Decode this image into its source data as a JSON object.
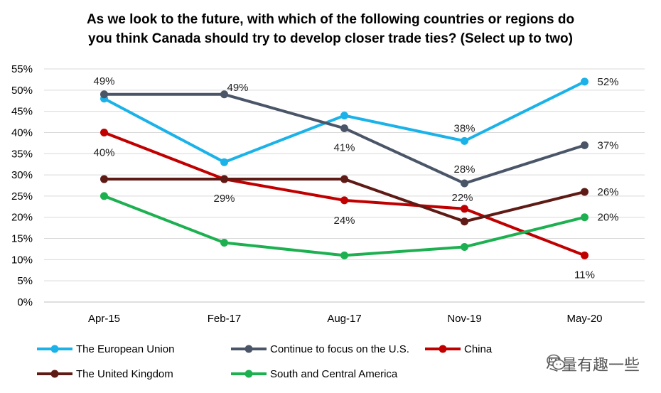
{
  "watermark": {
    "text": "尽量有趣一些",
    "icon": "wechat-icon"
  },
  "chart_data": {
    "type": "line",
    "title_lines": [
      "As we look to the future, with which of the following countries or regions do",
      "you think Canada should try to develop closer trade ties? (Select up to two)"
    ],
    "categories": [
      "Apr-15",
      "Feb-17",
      "Aug-17",
      "Nov-19",
      "May-20"
    ],
    "ylim": [
      0,
      55
    ],
    "yticks": [
      "0%",
      "5%",
      "10%",
      "15%",
      "20%",
      "25%",
      "30%",
      "35%",
      "40%",
      "45%",
      "50%",
      "55%"
    ],
    "grid": true,
    "legend_position": "bottom",
    "series": [
      {
        "name": "The European Union",
        "color": "#1AB2E8",
        "values": [
          48,
          33,
          44,
          38,
          52
        ],
        "labels": [
          "",
          "",
          "",
          "38%",
          "52%"
        ]
      },
      {
        "name": "Continue to focus on the U.S.",
        "color": "#4A5668",
        "values": [
          49,
          49,
          41,
          28,
          37
        ],
        "labels": [
          "49%",
          "49%",
          "41%",
          "28%",
          "37%"
        ]
      },
      {
        "name": "China",
        "color": "#C00000",
        "values": [
          40,
          29,
          24,
          22,
          11
        ],
        "labels": [
          "40%",
          "29%",
          "24%",
          "22%",
          "11%"
        ]
      },
      {
        "name": "The United Kingdom",
        "color": "#5E1A14",
        "values": [
          29,
          29,
          29,
          19,
          26
        ],
        "labels": [
          "",
          "",
          "",
          "",
          "26%"
        ]
      },
      {
        "name": "South and Central America",
        "color": "#1DB050",
        "values": [
          25,
          14,
          11,
          13,
          20
        ],
        "labels": [
          "",
          "",
          "",
          "",
          "20%"
        ]
      }
    ]
  }
}
